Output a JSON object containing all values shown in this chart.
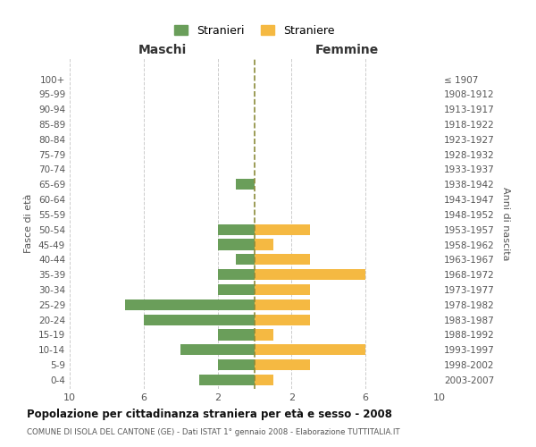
{
  "age_groups": [
    "0-4",
    "5-9",
    "10-14",
    "15-19",
    "20-24",
    "25-29",
    "30-34",
    "35-39",
    "40-44",
    "45-49",
    "50-54",
    "55-59",
    "60-64",
    "65-69",
    "70-74",
    "75-79",
    "80-84",
    "85-89",
    "90-94",
    "95-99",
    "100+"
  ],
  "birth_years": [
    "2003-2007",
    "1998-2002",
    "1993-1997",
    "1988-1992",
    "1983-1987",
    "1978-1982",
    "1973-1977",
    "1968-1972",
    "1963-1967",
    "1958-1962",
    "1953-1957",
    "1948-1952",
    "1943-1947",
    "1938-1942",
    "1933-1937",
    "1928-1932",
    "1923-1927",
    "1918-1922",
    "1913-1917",
    "1908-1912",
    "≤ 1907"
  ],
  "maschi": [
    3,
    2,
    4,
    2,
    6,
    7,
    2,
    2,
    1,
    2,
    2,
    0,
    0,
    1,
    0,
    0,
    0,
    0,
    0,
    0,
    0
  ],
  "femmine": [
    1,
    3,
    6,
    1,
    3,
    3,
    3,
    6,
    3,
    1,
    3,
    0,
    0,
    0,
    0,
    0,
    0,
    0,
    0,
    0,
    0
  ],
  "maschi_color": "#6a9e5a",
  "femmine_color": "#f5b942",
  "center_line_color": "#8b8b3a",
  "background_color": "#ffffff",
  "grid_color": "#cccccc",
  "title": "Popolazione per cittadinanza straniera per età e sesso - 2008",
  "subtitle": "COMUNE DI ISOLA DEL CANTONE (GE) - Dati ISTAT 1° gennaio 2008 - Elaborazione TUTTITALIA.IT",
  "ylabel_left": "Fasce di età",
  "ylabel_right": "Anni di nascita",
  "xlabel_left": "Maschi",
  "xlabel_right": "Femmine",
  "legend_maschi": "Stranieri",
  "legend_femmine": "Straniere",
  "xlim": 10
}
